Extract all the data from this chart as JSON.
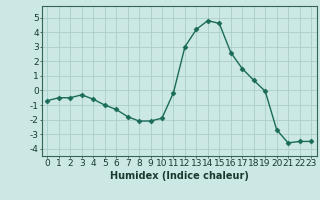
{
  "x": [
    0,
    1,
    2,
    3,
    4,
    5,
    6,
    7,
    8,
    9,
    10,
    11,
    12,
    13,
    14,
    15,
    16,
    17,
    18,
    19,
    20,
    21,
    22,
    23
  ],
  "y": [
    -0.7,
    -0.5,
    -0.5,
    -0.3,
    -0.6,
    -1.0,
    -1.3,
    -1.8,
    -2.1,
    -2.1,
    -1.9,
    -0.15,
    3.0,
    4.2,
    4.8,
    4.6,
    2.6,
    1.5,
    0.7,
    -0.05,
    -2.7,
    -3.6,
    -3.5,
    -3.5
  ],
  "line_color": "#1a6b5a",
  "marker": "D",
  "markersize": 2.5,
  "linewidth": 1.0,
  "bg_color": "#cce8e4",
  "grid_color": "#aaceca",
  "xlabel": "Humidex (Indice chaleur)",
  "xlabel_fontsize": 7,
  "xtick_labels": [
    "0",
    "1",
    "2",
    "3",
    "4",
    "5",
    "6",
    "7",
    "8",
    "9",
    "10",
    "11",
    "12",
    "13",
    "14",
    "15",
    "16",
    "17",
    "18",
    "19",
    "20",
    "21",
    "22",
    "23"
  ],
  "ytick_values": [
    -4,
    -3,
    -2,
    -1,
    0,
    1,
    2,
    3,
    4,
    5
  ],
  "ylim": [
    -4.5,
    5.8
  ],
  "xlim": [
    -0.5,
    23.5
  ],
  "tick_fontsize": 6.5
}
